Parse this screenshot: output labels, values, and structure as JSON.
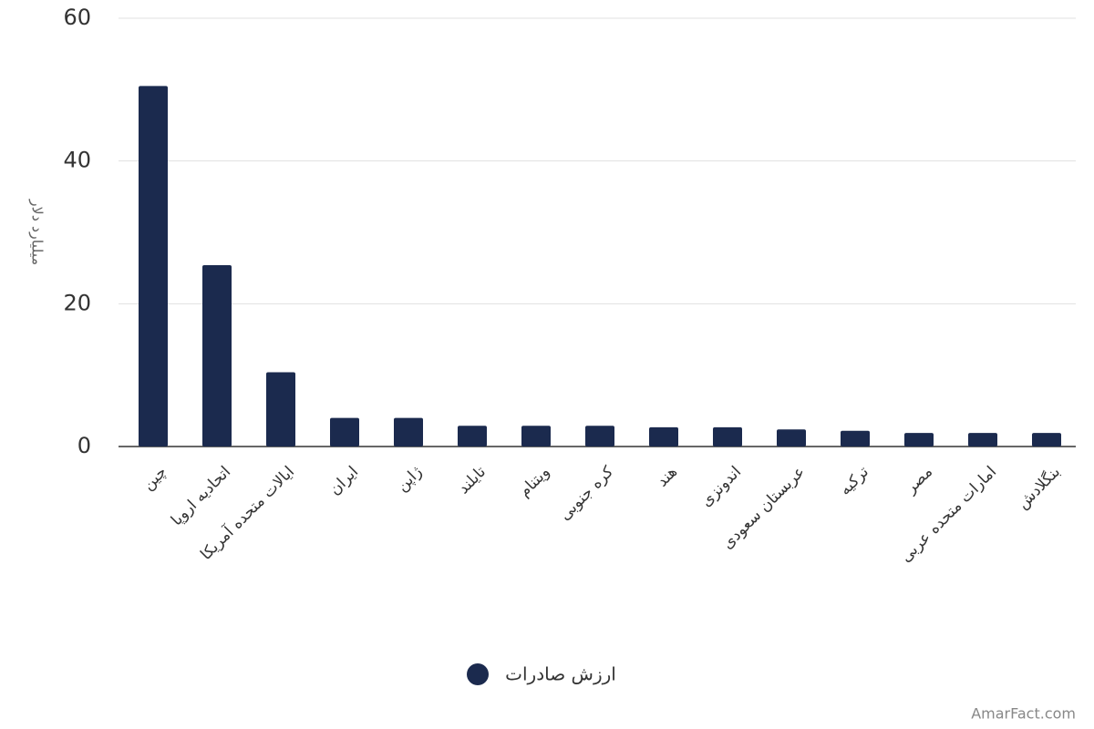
{
  "chart_data": {
    "type": "bar",
    "y_label": "میلیارد دلار",
    "categories": [
      "چین",
      "اتحادیه اروپا",
      "ایالات متحده آمریکا",
      "ایران",
      "ژاپن",
      "تایلند",
      "ویتنام",
      "کره جنوبی",
      "هند",
      "اندونزی",
      "عربستان سعودی",
      "ترکیه",
      "مصر",
      "امارات متحده عربی",
      "بنگلادش"
    ],
    "series": [
      {
        "name": "ارزش صادرات",
        "color": "#1b2a4e",
        "values": [
          50.5,
          25.4,
          10.4,
          4.0,
          4.0,
          2.9,
          2.9,
          2.9,
          2.7,
          2.7,
          2.4,
          2.2,
          1.9,
          1.9,
          1.9
        ]
      }
    ],
    "ylim": [
      0,
      60
    ],
    "yticks": [
      0,
      20,
      40,
      60
    ],
    "grid": true,
    "legend": "bottom",
    "watermark": "AmarFact.com"
  }
}
